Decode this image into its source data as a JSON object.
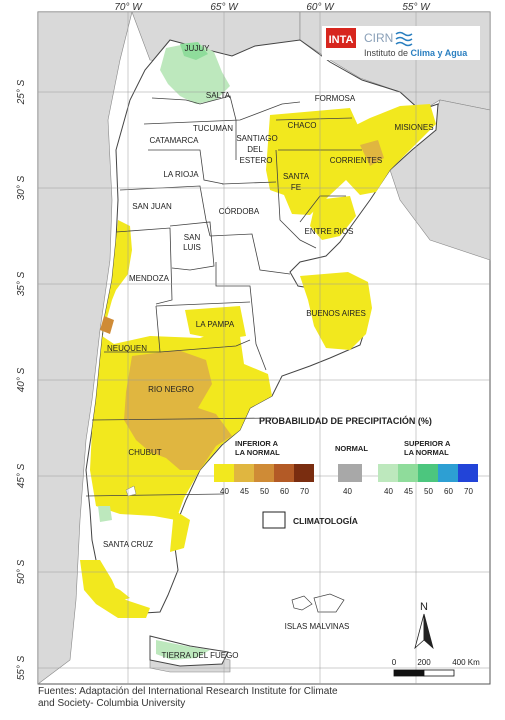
{
  "logo": {
    "inta_text": "INTA",
    "cirn_text": "CIRN",
    "institute_text_1": "Instituto de ",
    "institute_text_2": "Clima y Agua"
  },
  "axes": {
    "longitude_ticks": [
      "70° W",
      "65° W",
      "60° W",
      "55° W"
    ],
    "latitude_ticks": [
      "25° S",
      "30° S",
      "35° S",
      "40° S",
      "45° S",
      "50° S",
      "55° S"
    ]
  },
  "provinces": [
    "JUJUY",
    "SALTA",
    "FORMOSA",
    "CHACO",
    "MISIONES",
    "TUCUMAN",
    "CATAMARCA",
    "SANTIAGO",
    "DEL",
    "ESTERO",
    "CORRIENTES",
    "LA RIOJA",
    "SANTA",
    "FE",
    "SAN JUAN",
    "CÓRDOBA",
    "ENTRE RIOS",
    "SAN",
    "LUIS",
    "MENDOZA",
    "BUENOS AIRES",
    "LA PAMPA",
    "NEUQUEN",
    "RIO NEGRO",
    "CHUBUT",
    "SANTA CRUZ",
    "TIERRA DEL FUEGO",
    "ISLAS MALVINAS"
  ],
  "legend": {
    "title": "PROBABILIDAD DE PRECIPITACIÓN (%)",
    "below_label_1": "INFERIOR A",
    "below_label_2": "LA NORMAL",
    "normal_label": "NORMAL",
    "above_label_1": "SUPERIOR A",
    "above_label_2": "LA NORMAL",
    "below_values": [
      "40",
      "45",
      "50",
      "60",
      "70"
    ],
    "below_colors": [
      "#f2e81e",
      "#e0b640",
      "#cf8b36",
      "#b35a26",
      "#7a2d10"
    ],
    "normal_value": "40",
    "normal_color": "#a8a8a8",
    "above_values": [
      "40",
      "45",
      "50",
      "60",
      "70"
    ],
    "above_colors": [
      "#bde8bd",
      "#8fdc9b",
      "#4cc67e",
      "#2d9fd3",
      "#2244d8"
    ],
    "climatology_label": "CLIMATOLOGÍA"
  },
  "scale": {
    "north": "N",
    "labels": [
      "0",
      "200",
      "400 Km"
    ]
  },
  "source": {
    "line1": "Fuentes: Adaptación del International Research Institute for Climate",
    "line2": "and Society- Columbia University"
  }
}
